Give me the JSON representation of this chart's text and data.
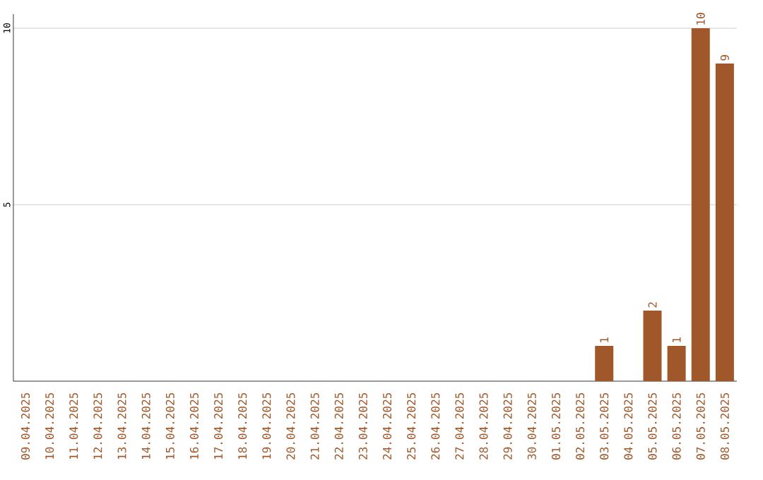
{
  "chart_data": {
    "type": "bar",
    "categories": [
      "09.04.2025",
      "10.04.2025",
      "11.04.2025",
      "12.04.2025",
      "13.04.2025",
      "14.04.2025",
      "15.04.2025",
      "16.04.2025",
      "17.04.2025",
      "18.04.2025",
      "19.04.2025",
      "20.04.2025",
      "21.04.2025",
      "22.04.2025",
      "23.04.2025",
      "24.04.2025",
      "25.04.2025",
      "26.04.2025",
      "27.04.2025",
      "28.04.2025",
      "29.04.2025",
      "30.04.2025",
      "01.05.2025",
      "02.05.2025",
      "03.05.2025",
      "04.05.2025",
      "05.05.2025",
      "06.05.2025",
      "07.05.2025",
      "08.05.2025"
    ],
    "values": [
      0,
      0,
      0,
      0,
      0,
      0,
      0,
      0,
      0,
      0,
      0,
      0,
      0,
      0,
      0,
      0,
      0,
      0,
      0,
      0,
      0,
      0,
      0,
      0,
      1,
      0,
      2,
      1,
      10,
      9
    ],
    "value_labels": [
      null,
      null,
      null,
      null,
      null,
      null,
      null,
      null,
      null,
      null,
      null,
      null,
      null,
      null,
      null,
      null,
      null,
      null,
      null,
      null,
      null,
      null,
      null,
      null,
      "1",
      null,
      "2",
      "1",
      "10",
      "9"
    ],
    "color": "#a0582a",
    "ylim": [
      0,
      10.4
    ],
    "yticks": [
      5,
      10
    ],
    "grid": "y"
  }
}
